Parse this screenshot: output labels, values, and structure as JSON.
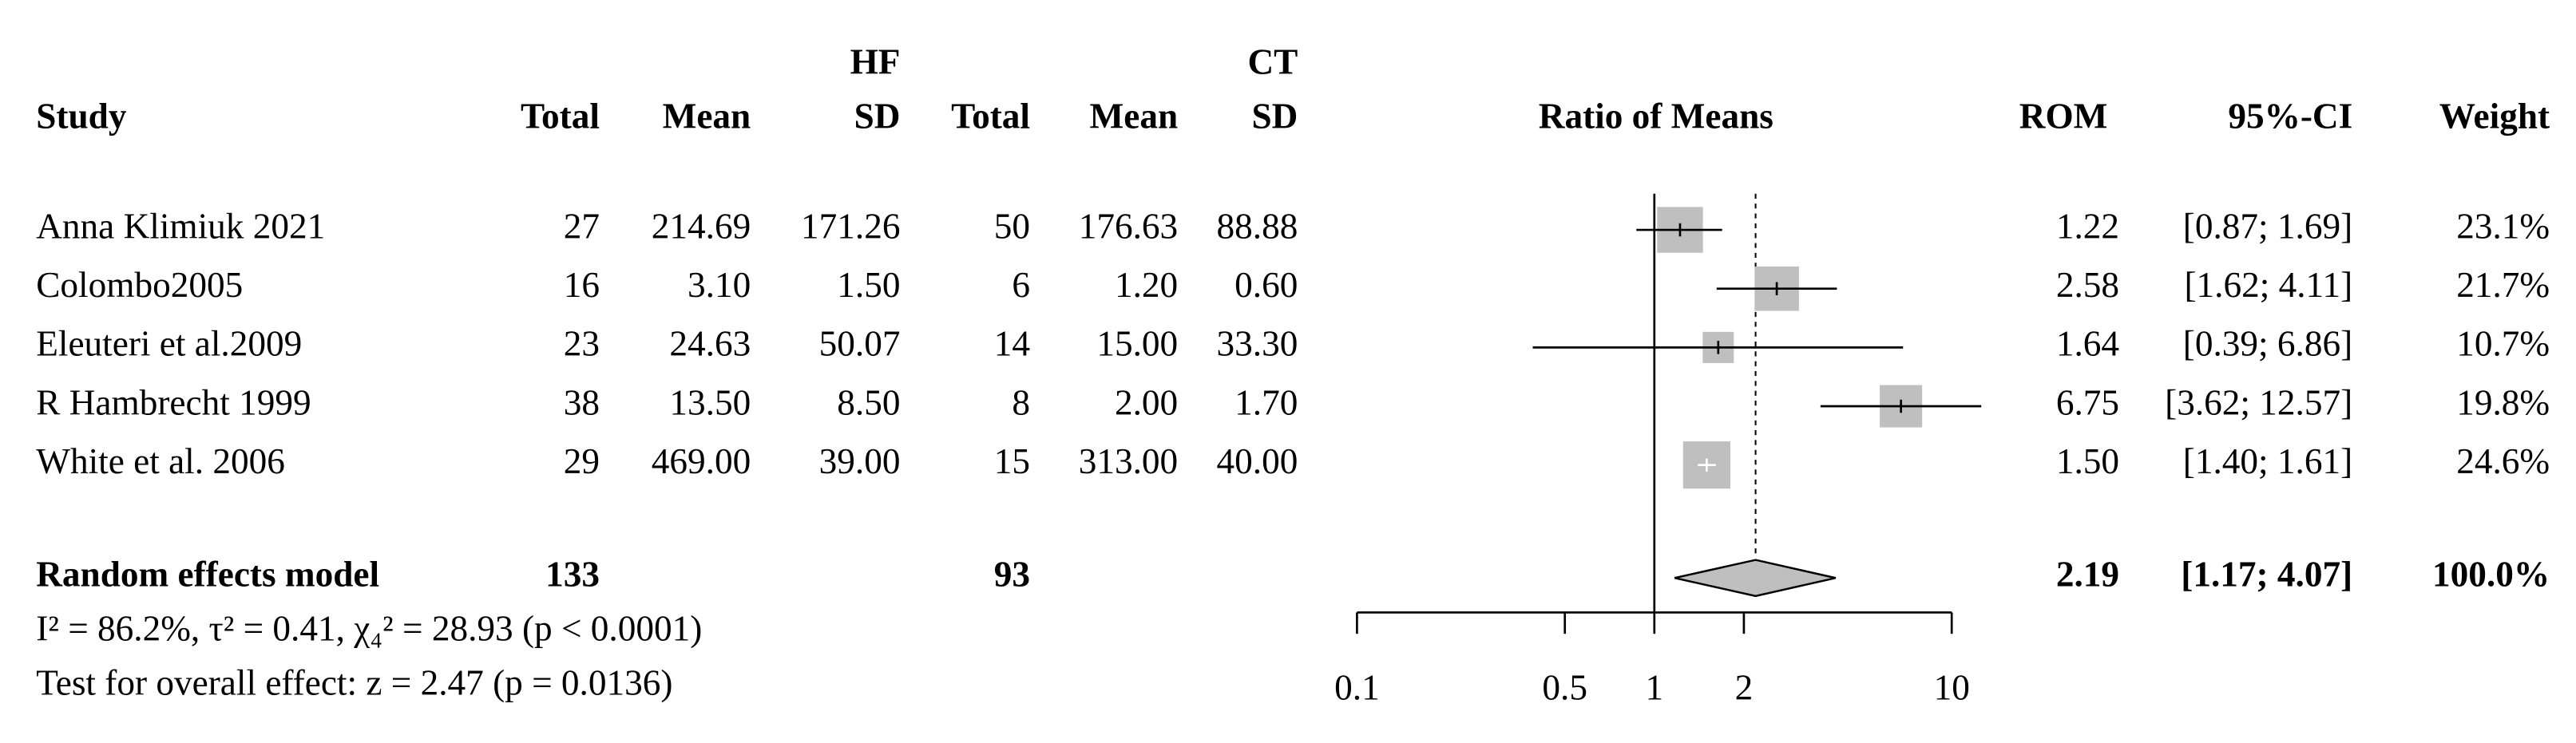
{
  "chart_data": {
    "type": "forest",
    "headers": {
      "study": "Study",
      "hf_group": "HF",
      "ct_group": "CT",
      "total": "Total",
      "mean": "Mean",
      "sd": "SD",
      "plot": "Ratio of Means",
      "rom": "ROM",
      "ci": "95%-CI",
      "weight": "Weight"
    },
    "categories": [
      "Anna Klimiuk 2021",
      "Colombo2005",
      "Eleuteri et al.2009",
      "R Hambrecht 1999",
      "White et al. 2006"
    ],
    "hf_total": [
      "27",
      "16",
      "23",
      "38",
      "29"
    ],
    "hf_mean": [
      "214.69",
      "3.10",
      "24.63",
      "13.50",
      "469.00"
    ],
    "hf_sd": [
      "171.26",
      "1.50",
      "50.07",
      "8.50",
      "39.00"
    ],
    "ct_total": [
      "50",
      "6",
      "14",
      "8",
      "15"
    ],
    "ct_mean": [
      "176.63",
      "1.20",
      "15.00",
      "2.00",
      "313.00"
    ],
    "ct_sd": [
      "88.88",
      "0.60",
      "33.30",
      "1.70",
      "40.00"
    ],
    "values": [
      1.22,
      2.58,
      1.64,
      6.75,
      1.5
    ],
    "value_labels": [
      "1.22",
      "2.58",
      "1.64",
      "6.75",
      "1.50"
    ],
    "ci_lower": [
      0.87,
      1.62,
      0.39,
      3.62,
      1.4
    ],
    "ci_upper": [
      1.69,
      4.11,
      6.86,
      12.57,
      1.61
    ],
    "ci_labels": [
      "[0.87; 1.69]",
      "[1.62; 4.11]",
      "[0.39; 6.86]",
      "[3.62; 12.57]",
      "[1.40; 1.61]"
    ],
    "weights": [
      23.1,
      21.7,
      10.7,
      19.8,
      24.6
    ],
    "weight_labels": [
      "23.1%",
      "21.7%",
      "10.7%",
      "19.8%",
      "24.6%"
    ],
    "summary": {
      "name": "Random effects model",
      "hf_total": "133",
      "ct_total": "93",
      "value": 2.19,
      "value_label": "2.19",
      "ci_lower": 1.17,
      "ci_upper": 4.07,
      "ci_label": "[1.17; 4.07]",
      "weight_label": "100.0%"
    },
    "heterogeneity": "I² = 86.2%, τ² = 0.41, χ₄² = 28.93 (p < 0.0001)",
    "overall_effect": "Test for overall effect: z = 2.47 (p = 0.0136)",
    "xscale": "log",
    "xlim": [
      0.1,
      10
    ],
    "xticks": [
      0.1,
      0.5,
      1,
      2,
      10
    ],
    "reference_line": 1,
    "square_color": "#bfbfbf",
    "diamond_color": "#bfbfbf"
  }
}
